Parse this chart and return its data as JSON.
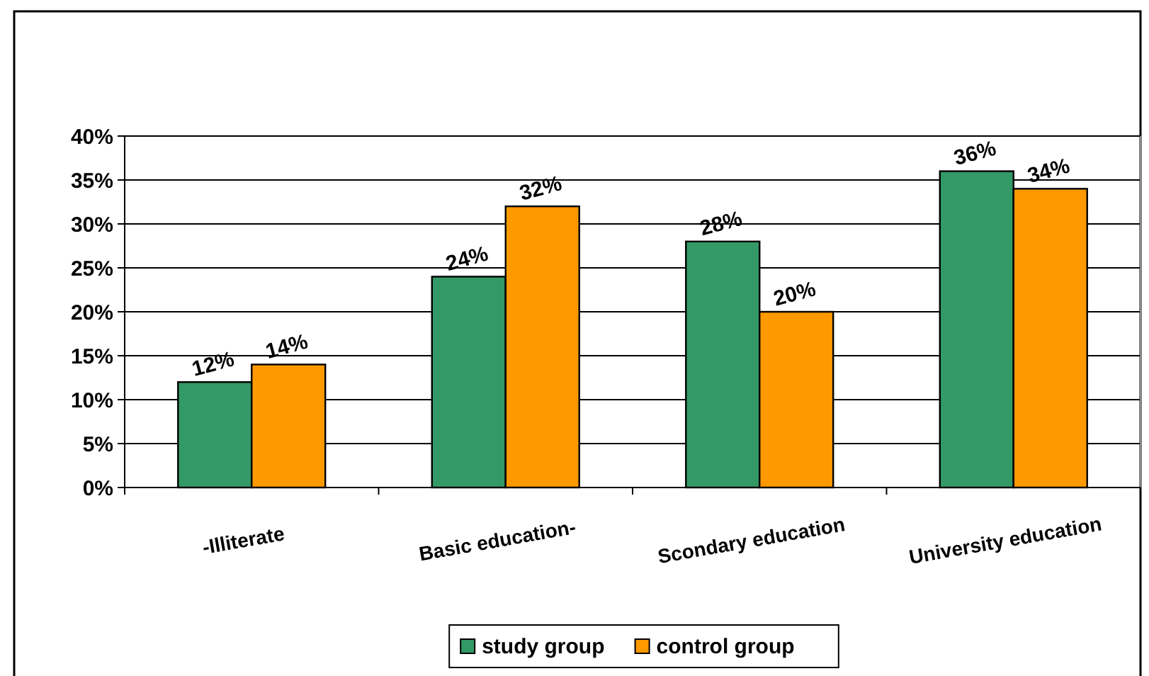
{
  "chart_data": {
    "type": "bar",
    "categories": [
      "-Illiterate",
      "Basic education-",
      "Scondary education",
      "University education"
    ],
    "series": [
      {
        "name": "study group",
        "color": "#339966",
        "values": [
          12,
          24,
          28,
          36
        ]
      },
      {
        "name": "control group",
        "color": "#ff9900",
        "values": [
          14,
          32,
          20,
          34
        ]
      }
    ],
    "ylim": [
      0,
      40
    ],
    "yticks": [
      {
        "value": 0,
        "label": "0%"
      },
      {
        "value": 5,
        "label": "5%"
      },
      {
        "value": 10,
        "label": "10%"
      },
      {
        "value": 15,
        "label": "15%"
      },
      {
        "value": 20,
        "label": "20%"
      },
      {
        "value": 25,
        "label": "25%"
      },
      {
        "value": 30,
        "label": "30%"
      },
      {
        "value": 35,
        "label": "35%"
      },
      {
        "value": 40,
        "label": "40%"
      }
    ],
    "value_labels": [
      [
        "12%",
        "24%",
        "28%",
        "36%"
      ],
      [
        "14%",
        "32%",
        "20%",
        "34%"
      ]
    ],
    "grid": "y",
    "legend": "bottom"
  }
}
